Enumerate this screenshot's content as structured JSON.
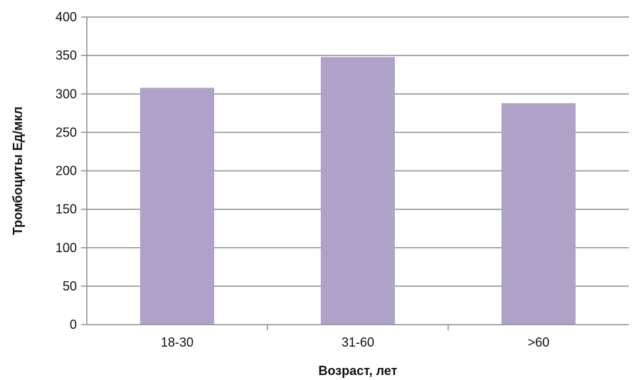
{
  "chart_data": {
    "type": "bar",
    "title": "",
    "xlabel": "Возраст, лет",
    "ylabel": "Тромбоциты Ед/мкл",
    "categories": [
      "18-30",
      "31-60",
      ">60"
    ],
    "values": [
      308,
      348,
      288
    ],
    "ylim": [
      0,
      400
    ],
    "yticks": [
      0,
      50,
      100,
      150,
      200,
      250,
      300,
      350,
      400
    ],
    "grid": true,
    "legend": "none",
    "bar_color": "#b0a1c8",
    "grid_color": "#8c8c8c"
  }
}
